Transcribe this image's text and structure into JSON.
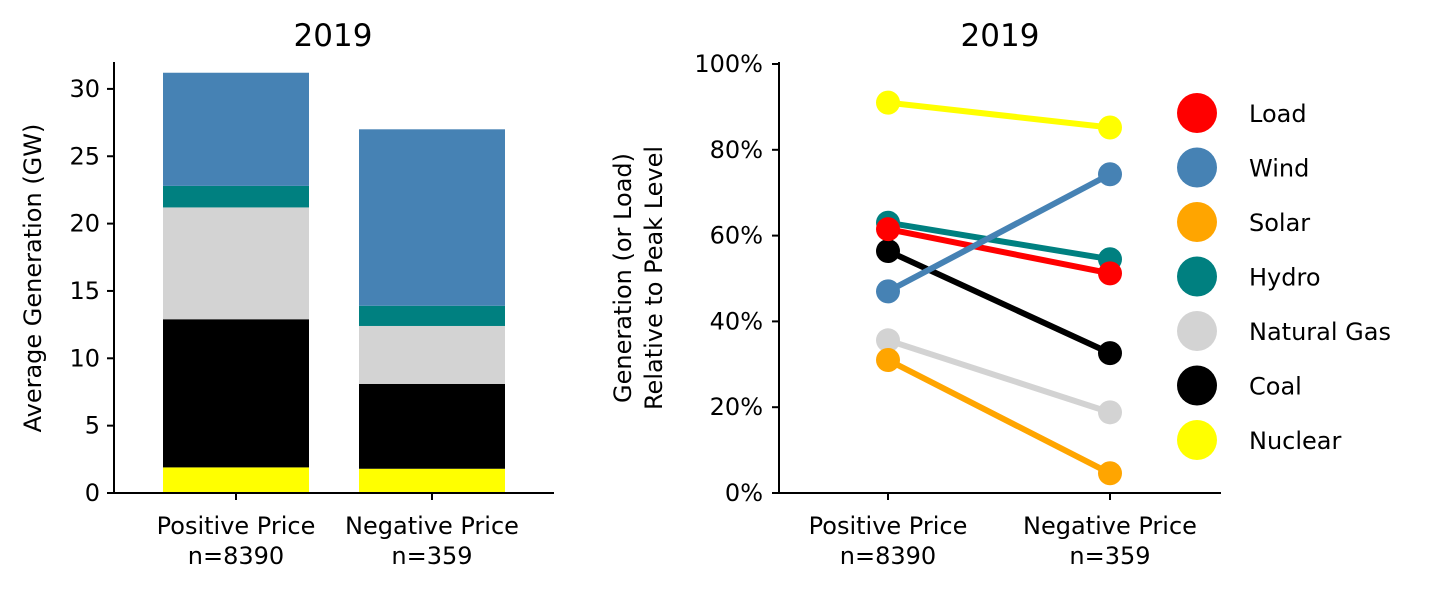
{
  "chart_data": [
    {
      "type": "bar",
      "stacked": true,
      "title": "2019",
      "xlabel": "",
      "ylabel": "Average Generation (GW)",
      "ylim": [
        0,
        32
      ],
      "yticks": [
        0,
        5,
        10,
        15,
        20,
        25,
        30
      ],
      "categories": [
        {
          "name": "Positive Price",
          "count": "n=8390"
        },
        {
          "name": "Negative Price",
          "count": "n=359"
        }
      ],
      "series": [
        {
          "key": "Nuclear",
          "color": "#ffff00",
          "values": [
            1.9,
            1.8
          ]
        },
        {
          "key": "Coal",
          "color": "#000000",
          "values": [
            11.0,
            6.3
          ]
        },
        {
          "key": "Natural Gas",
          "color": "#d3d3d3",
          "values": [
            8.3,
            4.3
          ]
        },
        {
          "key": "Hydro",
          "color": "#008080",
          "values": [
            1.6,
            1.5
          ]
        },
        {
          "key": "Wind",
          "color": "#4682b4",
          "values": [
            8.4,
            13.1
          ]
        }
      ]
    },
    {
      "type": "line",
      "title": "2019",
      "xlabel": "",
      "ylabel": [
        "Generation (or Load)",
        "Relative to Peak Level"
      ],
      "ylim": [
        0,
        100
      ],
      "yticks": [
        {
          "value": 0,
          "label": "0%"
        },
        {
          "value": 20,
          "label": "20%"
        },
        {
          "value": 40,
          "label": "40%"
        },
        {
          "value": 60,
          "label": "60%"
        },
        {
          "value": 80,
          "label": "80%"
        },
        {
          "value": 100,
          "label": "100%"
        }
      ],
      "categories": [
        {
          "name": "Positive Price",
          "count": "n=8390"
        },
        {
          "name": "Negative Price",
          "count": "n=359"
        }
      ],
      "legend_position": "right",
      "series": [
        {
          "name": "Load",
          "color": "#ff0000",
          "values": [
            61.5,
            51.2
          ]
        },
        {
          "name": "Wind",
          "color": "#4682b4",
          "values": [
            47.0,
            74.3
          ]
        },
        {
          "name": "Solar",
          "color": "#ffa500",
          "values": [
            31.0,
            4.6
          ]
        },
        {
          "name": "Hydro",
          "color": "#008080",
          "values": [
            63.0,
            54.5
          ]
        },
        {
          "name": "Natural Gas",
          "color": "#d3d3d3",
          "values": [
            35.6,
            18.8
          ]
        },
        {
          "name": "Coal",
          "color": "#000000",
          "values": [
            56.4,
            32.6
          ]
        },
        {
          "name": "Nuclear",
          "color": "#ffff00",
          "values": [
            91.0,
            85.2
          ]
        }
      ],
      "draw_order": [
        "Nuclear",
        "Coal",
        "Natural Gas",
        "Solar",
        "Hydro",
        "Load",
        "Wind"
      ]
    }
  ]
}
